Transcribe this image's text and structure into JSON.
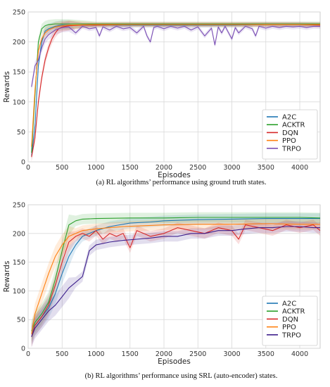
{
  "chart_data": [
    {
      "type": "line",
      "caption": "(a) RL algorithms’ performance using ground truth states.",
      "xlabel": "Episodes",
      "ylabel": "Rewards",
      "xlim": [
        0,
        4300
      ],
      "ylim": [
        0,
        250
      ],
      "xticks": [
        0,
        500,
        1000,
        1500,
        2000,
        2500,
        3000,
        3500,
        4000
      ],
      "yticks": [
        0,
        50,
        100,
        150,
        200,
        250
      ],
      "grid": true,
      "legend_position": "lower-right",
      "series": [
        {
          "name": "A2C",
          "color": "#1f77b4",
          "x": [
            50,
            100,
            150,
            200,
            250,
            300,
            400,
            500,
            600,
            800,
            1000,
            1500,
            2000,
            2500,
            3000,
            3500,
            4000,
            4300
          ],
          "y": [
            10,
            60,
            160,
            200,
            218,
            222,
            226,
            228,
            228,
            228,
            228,
            228,
            228,
            228,
            228,
            229,
            229,
            229
          ]
        },
        {
          "name": "ACKTR",
          "color": "#2ca02c",
          "x": [
            50,
            100,
            150,
            200,
            250,
            300,
            400,
            500,
            600,
            1000,
            1500,
            2000,
            2500,
            3000,
            3500,
            4000,
            4300
          ],
          "y": [
            15,
            110,
            200,
            222,
            227,
            229,
            230,
            230,
            230,
            230,
            230,
            230,
            230,
            230,
            230,
            230,
            230
          ]
        },
        {
          "name": "DQN",
          "color": "#d62728",
          "x": [
            50,
            100,
            150,
            200,
            250,
            300,
            350,
            400,
            450,
            500,
            600,
            800,
            1000,
            1500,
            2000,
            2500,
            3000,
            3500,
            4000,
            4300
          ],
          "y": [
            8,
            40,
            100,
            140,
            170,
            190,
            205,
            215,
            222,
            225,
            227,
            228,
            228,
            229,
            229,
            229,
            229,
            229,
            229,
            228
          ]
        },
        {
          "name": "PPO",
          "color": "#ff7f0e",
          "x": [
            50,
            100,
            150,
            200,
            250,
            300,
            400,
            500,
            600,
            1000,
            1500,
            2000,
            2500,
            3000,
            3500,
            4000,
            4300
          ],
          "y": [
            25,
            120,
            185,
            205,
            215,
            220,
            225,
            227,
            228,
            229,
            229,
            229,
            229,
            229,
            229,
            229,
            229
          ]
        },
        {
          "name": "TRPO",
          "color": "#7b4fb5",
          "x": [
            50,
            100,
            150,
            200,
            250,
            300,
            400,
            500,
            600,
            700,
            800,
            900,
            1000,
            1050,
            1100,
            1200,
            1300,
            1400,
            1500,
            1600,
            1700,
            1750,
            1800,
            1850,
            1900,
            2000,
            2100,
            2200,
            2300,
            2400,
            2500,
            2600,
            2700,
            2750,
            2800,
            2850,
            2900,
            3000,
            3050,
            3100,
            3200,
            3300,
            3350,
            3400,
            3500,
            3600,
            3700,
            3800,
            3900,
            4000,
            4100,
            4200,
            4300
          ],
          "y": [
            125,
            160,
            170,
            190,
            205,
            212,
            220,
            224,
            225,
            215,
            226,
            222,
            224,
            210,
            225,
            220,
            226,
            222,
            224,
            215,
            226,
            210,
            200,
            224,
            226,
            222,
            226,
            223,
            226,
            220,
            225,
            210,
            223,
            195,
            225,
            215,
            226,
            205,
            224,
            215,
            226,
            222,
            210,
            226,
            223,
            226,
            224,
            226,
            225,
            226,
            224,
            226,
            226
          ]
        }
      ]
    },
    {
      "type": "line",
      "caption": "(b) RL algorithms’ performance using SRL (auto-encoder) states.",
      "xlabel": "Episodes",
      "ylabel": "Rewards",
      "xlim": [
        0,
        4300
      ],
      "ylim": [
        0,
        250
      ],
      "xticks": [
        0,
        500,
        1000,
        1500,
        2000,
        2500,
        3000,
        3500,
        4000
      ],
      "yticks": [
        0,
        50,
        100,
        150,
        200,
        250
      ],
      "grid": true,
      "legend_position": "lower-right",
      "series": [
        {
          "name": "A2C",
          "color": "#1f77b4",
          "x": [
            50,
            100,
            200,
            300,
            400,
            500,
            600,
            700,
            800,
            900,
            1000,
            1200,
            1500,
            1800,
            2000,
            2500,
            3000,
            3500,
            4000,
            4300
          ],
          "y": [
            25,
            40,
            55,
            70,
            95,
            130,
            160,
            180,
            195,
            200,
            205,
            212,
            218,
            220,
            222,
            224,
            225,
            226,
            226,
            226
          ]
        },
        {
          "name": "ACKTR",
          "color": "#2ca02c",
          "x": [
            50,
            100,
            200,
            300,
            400,
            500,
            600,
            700,
            800,
            1000,
            1500,
            2000,
            2500,
            3000,
            3500,
            4000,
            4300
          ],
          "y": [
            30,
            45,
            60,
            80,
            120,
            170,
            215,
            222,
            225,
            226,
            227,
            227,
            228,
            228,
            228,
            228,
            227
          ]
        },
        {
          "name": "DQN",
          "color": "#d62728",
          "x": [
            50,
            100,
            200,
            300,
            400,
            500,
            600,
            700,
            800,
            900,
            1000,
            1100,
            1200,
            1300,
            1400,
            1500,
            1600,
            1700,
            1800,
            2000,
            2200,
            2400,
            2600,
            2800,
            3000,
            3100,
            3200,
            3400,
            3600,
            3800,
            4000,
            4200,
            4300
          ],
          "y": [
            20,
            40,
            55,
            75,
            110,
            150,
            185,
            195,
            200,
            195,
            205,
            190,
            200,
            195,
            200,
            175,
            205,
            200,
            195,
            200,
            210,
            205,
            200,
            210,
            205,
            190,
            215,
            210,
            205,
            215,
            210,
            215,
            205
          ]
        },
        {
          "name": "PPO",
          "color": "#ff7f0e",
          "x": [
            50,
            100,
            200,
            300,
            400,
            500,
            600,
            700,
            800,
            1000,
            1200,
            1400,
            1600,
            1800,
            2000,
            2500,
            3000,
            3500,
            4000,
            4300
          ],
          "y": [
            25,
            60,
            95,
            130,
            160,
            180,
            195,
            200,
            205,
            208,
            210,
            212,
            213,
            214,
            215,
            216,
            216,
            217,
            216,
            216
          ]
        },
        {
          "name": "TRPO",
          "color": "#3d1f8c",
          "x": [
            50,
            100,
            200,
            300,
            400,
            500,
            600,
            700,
            800,
            900,
            1000,
            1200,
            1400,
            1600,
            1800,
            2000,
            2200,
            2400,
            2600,
            2800,
            3000,
            3200,
            3400,
            3600,
            3800,
            4000,
            4200,
            4300
          ],
          "y": [
            20,
            35,
            50,
            65,
            75,
            90,
            105,
            115,
            125,
            170,
            180,
            185,
            188,
            190,
            192,
            195,
            195,
            200,
            200,
            205,
            205,
            208,
            210,
            210,
            212,
            212,
            210,
            210
          ]
        }
      ]
    }
  ]
}
